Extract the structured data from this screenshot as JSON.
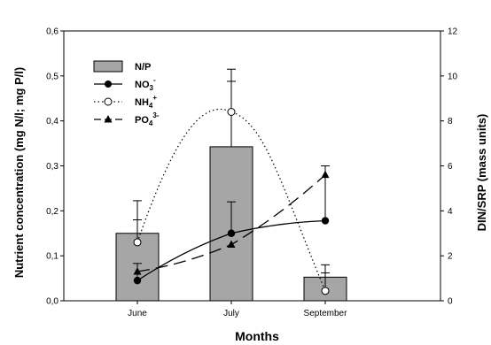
{
  "chart_data": {
    "type": "bar",
    "categories": [
      "June",
      "July",
      "September"
    ],
    "xlabel": "Months",
    "ylabel": "Nutrient concentration (mg N/l; mg P/l)",
    "y2label": "DIN/SRP (mass units)",
    "ylim": [
      0,
      0.6
    ],
    "y2lim": [
      0,
      12
    ],
    "yticks": [
      "0,0",
      "0,1",
      "0,2",
      "0,3",
      "0,4",
      "0,5",
      "0,6"
    ],
    "y2ticks": [
      "0",
      "2",
      "4",
      "6",
      "8",
      "10",
      "12"
    ],
    "legend_position": "top-left",
    "series": [
      {
        "name": "N/P",
        "kind": "bar",
        "axis": "right",
        "values": [
          3.0,
          6.85,
          1.05
        ],
        "err_plus": [
          1.45,
          3.45,
          0.55
        ],
        "color": "#a6a6a6"
      },
      {
        "name": "NO",
        "sub": "3",
        "sup": "-",
        "kind": "line-filled-circle",
        "axis": "left",
        "values": [
          0.045,
          0.15,
          0.178
        ],
        "err_plus": [
          0.038,
          0.07,
          0.122
        ],
        "color": "#000000"
      },
      {
        "name": "NH",
        "sub": "4",
        "sup": "+",
        "kind": "dotted-open-circle",
        "axis": "left",
        "values": [
          0.13,
          0.42,
          0.022
        ],
        "err_plus": [
          0.05,
          0.068,
          0.04
        ],
        "color": "#000000"
      },
      {
        "name": "PO",
        "sub": "4",
        "sup": "3-",
        "kind": "dashed-triangle",
        "axis": "left",
        "values": [
          0.065,
          0.125,
          0.28
        ],
        "err_plus": [
          0.0,
          0.0,
          0.0
        ],
        "color": "#000000"
      }
    ]
  }
}
